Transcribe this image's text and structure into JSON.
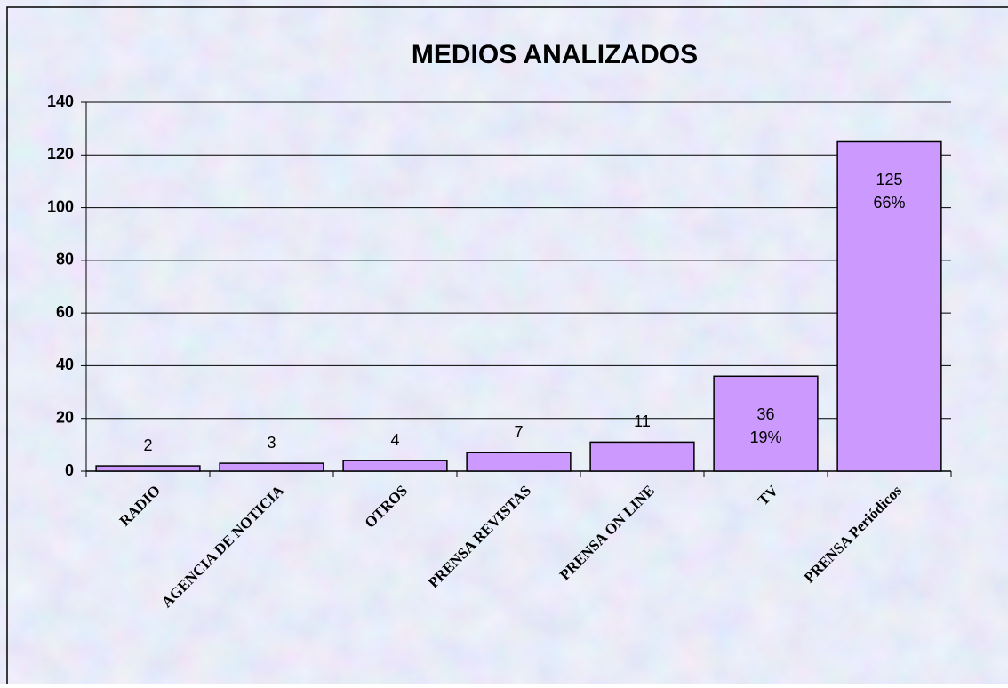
{
  "chart_data": {
    "type": "bar",
    "title": "MEDIOS ANALIZADOS",
    "categories": [
      "RADIO",
      "AGENCIA DE NOTICIA",
      "OTROS",
      "PRENSA REVISTAS",
      "PRENSA ON LINE",
      "TV",
      "PRENSA Periódicos"
    ],
    "values": [
      2,
      3,
      4,
      7,
      11,
      36,
      125
    ],
    "percent_labels": [
      null,
      null,
      null,
      null,
      null,
      "19%",
      "66%"
    ],
    "color": "#cc99ff",
    "ylim": [
      0,
      140
    ],
    "yticks": [
      0,
      20,
      40,
      60,
      80,
      100,
      120,
      140
    ],
    "grid": true
  }
}
